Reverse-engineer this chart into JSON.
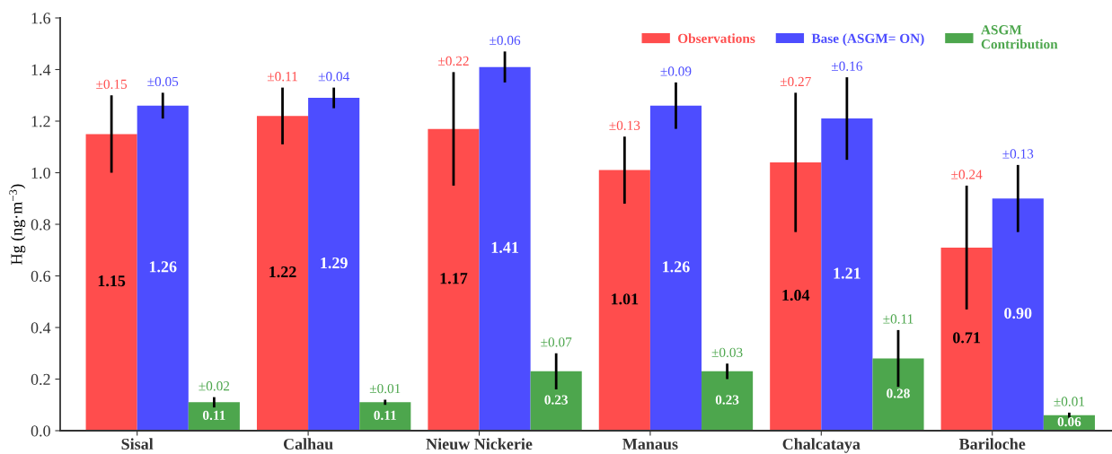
{
  "chart_data": {
    "type": "bar",
    "ylabel": "Hg (ng·m$^{−3}$)",
    "categories": [
      "Sisal",
      "Calhau",
      "Nieuw Nickerie",
      "Manaus",
      "Chalcataya",
      "Bariloche"
    ],
    "series": [
      {
        "name": "Observations",
        "color": "#ff4d4d",
        "values": [
          1.15,
          1.22,
          1.17,
          1.01,
          1.04,
          0.71
        ],
        "errors": [
          0.15,
          0.11,
          0.22,
          0.13,
          0.27,
          0.24
        ],
        "value_labels": [
          "1.15",
          "1.22",
          "1.17",
          "1.01",
          "1.04",
          "0.71"
        ]
      },
      {
        "name": "Base (ASGM= ON)",
        "color": "#4d4dff",
        "values": [
          1.26,
          1.29,
          1.41,
          1.26,
          1.21,
          0.9
        ],
        "errors": [
          0.05,
          0.04,
          0.06,
          0.09,
          0.16,
          0.13
        ],
        "value_labels": [
          "1.26",
          "1.29",
          "1.41",
          "1.26",
          "1.21",
          "0.90"
        ]
      },
      {
        "name": "ASGM\nContribution",
        "color": "#4da64d",
        "values": [
          0.11,
          0.11,
          0.23,
          0.23,
          0.28,
          0.06
        ],
        "errors": [
          0.02,
          0.01,
          0.07,
          0.03,
          0.11,
          0.01
        ],
        "value_labels": [
          "0.11",
          "0.11",
          "0.23",
          "0.23",
          "0.28",
          "0.06"
        ]
      }
    ],
    "ylim": [
      0,
      1.6
    ],
    "yticks": [
      {
        "value": 0,
        "label": "0.0"
      },
      {
        "value": 0.2,
        "label": "0.2"
      },
      {
        "value": 0.4,
        "label": "0.4"
      },
      {
        "value": 0.6,
        "label": "0.6"
      },
      {
        "value": 0.8,
        "label": "0.8"
      },
      {
        "value": 1.0,
        "label": "1.0"
      },
      {
        "value": 1.2,
        "label": "1.2"
      },
      {
        "value": 1.4,
        "label": "1.4"
      },
      {
        "value": 1.6,
        "label": "1.6"
      }
    ],
    "legend": "top right",
    "annotations": [
      "±0.15",
      "±0.11",
      "±0.22",
      "±0.13",
      "±0.27",
      "±0.24",
      "±0.05",
      "±0.04",
      "±0.06",
      "±0.09",
      "±0.16",
      "±0.13",
      "±0.02",
      "±0.01",
      "±0.07",
      "±0.03",
      "±0.11",
      "±0.01"
    ]
  }
}
